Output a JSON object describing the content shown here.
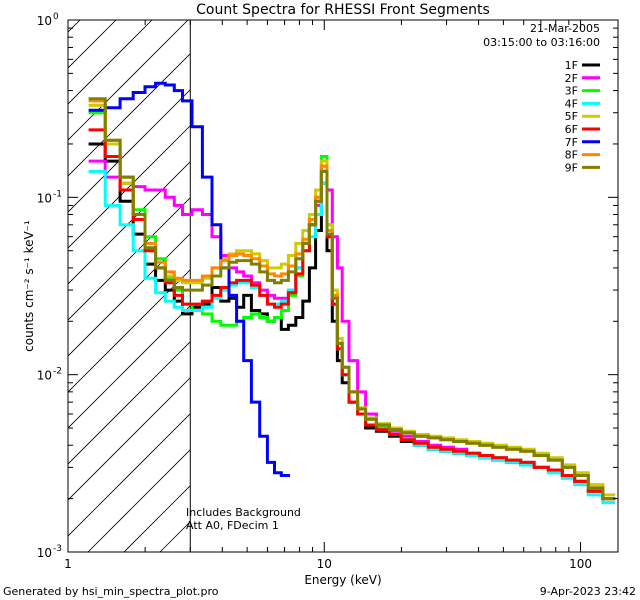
{
  "chart_data": {
    "type": "line",
    "title": "Count Spectra for RHESSI Front Segments",
    "xlabel": "Energy (keV)",
    "ylabel": "counts cm⁻² s⁻¹ keV⁻¹",
    "xscale": "log",
    "yscale": "log",
    "xlim": [
      1,
      140
    ],
    "ylim": [
      0.001,
      1
    ],
    "x_ticks": [
      1,
      10,
      100
    ],
    "x_tick_labels": [
      "1",
      "10",
      "100"
    ],
    "y_ticks": [
      0.001,
      0.01,
      0.1,
      1
    ],
    "y_tick_labels": [
      {
        "base": "10",
        "exp": "-3"
      },
      {
        "base": "10",
        "exp": "-2"
      },
      {
        "base": "10",
        "exp": "-1"
      },
      {
        "base": "10",
        "exp": "0"
      }
    ],
    "date": "21-Mar-2005",
    "time_range": "03:15:00 to 03:16:00",
    "shaded_region_keV": [
      1,
      3
    ],
    "legend_position": "top-right",
    "annotations": [
      "Includes Background",
      "Att A0, FDecim 1"
    ],
    "series": [
      {
        "name": "1F",
        "color": "#000000",
        "x": [
          1.3,
          1.5,
          1.7,
          1.9,
          2.1,
          2.3,
          2.5,
          2.7,
          2.9,
          3.2,
          3.5,
          3.8,
          4.1,
          4.4,
          4.7,
          5.0,
          5.4,
          5.8,
          6.2,
          6.6,
          7.0,
          7.5,
          8.0,
          8.5,
          9.0,
          9.5,
          10.0,
          10.5,
          11.0,
          11.5,
          12.0,
          13,
          14,
          15,
          17,
          19,
          21,
          24,
          27,
          30,
          34,
          38,
          43,
          48,
          55,
          62,
          70,
          80,
          90,
          100,
          115,
          130
        ],
        "y": [
          0.2,
          0.16,
          0.095,
          0.062,
          0.042,
          0.034,
          0.03,
          0.026,
          0.022,
          0.024,
          0.025,
          0.031,
          0.026,
          0.027,
          0.024,
          0.028,
          0.023,
          0.022,
          0.02,
          0.021,
          0.018,
          0.019,
          0.021,
          0.026,
          0.04,
          0.065,
          0.12,
          0.05,
          0.02,
          0.012,
          0.009,
          0.007,
          0.006,
          0.005,
          0.0048,
          0.0045,
          0.0042,
          0.004,
          0.0038,
          0.0037,
          0.0036,
          0.0035,
          0.0034,
          0.0033,
          0.0032,
          0.0031,
          0.003,
          0.0029,
          0.0027,
          0.0025,
          0.0022,
          0.002
        ]
      },
      {
        "name": "2F",
        "color": "#ff00ff",
        "x": [
          1.3,
          1.5,
          1.7,
          1.9,
          2.1,
          2.3,
          2.5,
          2.7,
          2.9,
          3.2,
          3.5,
          3.8,
          4.1,
          4.4,
          4.7,
          5.0,
          5.4,
          5.8,
          6.2,
          6.6,
          7.0,
          7.5,
          8.0,
          8.5,
          9.0,
          9.5,
          10.0,
          10.5,
          11.0,
          11.5,
          12.0,
          13,
          14,
          15,
          17,
          19,
          21,
          24,
          27,
          30,
          34,
          38,
          43,
          48,
          55,
          62,
          70,
          80,
          90,
          100,
          115,
          130
        ],
        "y": [
          0.16,
          0.13,
          0.12,
          0.115,
          0.11,
          0.11,
          0.1,
          0.09,
          0.08,
          0.085,
          0.08,
          0.06,
          0.047,
          0.04,
          0.038,
          0.036,
          0.033,
          0.03,
          0.028,
          0.027,
          0.027,
          0.03,
          0.04,
          0.055,
          0.07,
          0.09,
          0.15,
          0.11,
          0.06,
          0.04,
          0.02,
          0.012,
          0.008,
          0.006,
          0.0052,
          0.0048,
          0.0045,
          0.0042,
          0.004,
          0.0039,
          0.0038,
          0.0036,
          0.0035,
          0.0034,
          0.0033,
          0.0032,
          0.003,
          0.0029,
          0.0027,
          0.0025,
          0.0022,
          0.002
        ]
      },
      {
        "name": "3F",
        "color": "#00ff00",
        "x": [
          1.3,
          1.5,
          1.7,
          1.9,
          2.1,
          2.3,
          2.5,
          2.7,
          2.9,
          3.2,
          3.5,
          3.8,
          4.1,
          4.4,
          4.7,
          5.0,
          5.4,
          5.8,
          6.2,
          6.6,
          7.0,
          7.5,
          8.0,
          8.5,
          9.0,
          9.5,
          10.0,
          10.5,
          11.0,
          11.5,
          12.0,
          13,
          14,
          15,
          17,
          19,
          21,
          24,
          27,
          30,
          34,
          38,
          43,
          48,
          55,
          62,
          70,
          80,
          90,
          100,
          115,
          130
        ],
        "y": [
          0.3,
          0.2,
          0.13,
          0.085,
          0.06,
          0.045,
          0.035,
          0.03,
          0.025,
          0.023,
          0.022,
          0.02,
          0.019,
          0.019,
          0.02,
          0.021,
          0.022,
          0.021,
          0.02,
          0.021,
          0.023,
          0.028,
          0.036,
          0.05,
          0.07,
          0.1,
          0.17,
          0.07,
          0.025,
          0.014,
          0.01,
          0.007,
          0.006,
          0.0052,
          0.005,
          0.0046,
          0.0043,
          0.0041,
          0.0039,
          0.0038,
          0.0037,
          0.0036,
          0.0035,
          0.0034,
          0.0033,
          0.0032,
          0.003,
          0.0029,
          0.0027,
          0.0025,
          0.0022,
          0.002
        ]
      },
      {
        "name": "4F",
        "color": "#00ffff",
        "x": [
          1.3,
          1.5,
          1.7,
          1.9,
          2.1,
          2.3,
          2.5,
          2.7,
          2.9,
          3.2,
          3.5,
          3.8,
          4.1,
          4.4,
          4.7,
          5.0,
          5.4,
          5.8,
          6.2,
          6.6,
          7.0,
          7.5,
          8.0,
          8.5,
          9.0,
          9.5,
          10.0,
          10.5,
          11.0,
          11.5,
          12.0,
          13,
          14,
          15,
          17,
          19,
          21,
          24,
          27,
          30,
          34,
          38,
          43,
          48,
          55,
          62,
          70,
          80,
          90,
          100,
          115,
          130
        ],
        "y": [
          0.14,
          0.09,
          0.07,
          0.05,
          0.035,
          0.029,
          0.026,
          0.024,
          0.023,
          0.023,
          0.024,
          0.027,
          0.03,
          0.032,
          0.033,
          0.033,
          0.031,
          0.028,
          0.025,
          0.025,
          0.026,
          0.03,
          0.04,
          0.05,
          0.06,
          0.08,
          0.12,
          0.06,
          0.025,
          0.014,
          0.01,
          0.007,
          0.006,
          0.0052,
          0.0049,
          0.0046,
          0.0043,
          0.004,
          0.0038,
          0.0037,
          0.0036,
          0.0035,
          0.0034,
          0.0033,
          0.0032,
          0.0031,
          0.003,
          0.0028,
          0.0026,
          0.0024,
          0.0021,
          0.0019
        ]
      },
      {
        "name": "5F",
        "color": "#cccc00",
        "x": [
          1.3,
          1.5,
          1.7,
          1.9,
          2.1,
          2.3,
          2.5,
          2.7,
          2.9,
          3.2,
          3.5,
          3.8,
          4.1,
          4.4,
          4.7,
          5.0,
          5.4,
          5.8,
          6.2,
          6.6,
          7.0,
          7.5,
          8.0,
          8.5,
          9.0,
          9.5,
          10.0,
          10.5,
          11.0,
          11.5,
          12.0,
          13,
          14,
          15,
          17,
          19,
          21,
          24,
          27,
          30,
          34,
          38,
          43,
          48,
          55,
          62,
          70,
          80,
          90,
          100,
          115,
          130
        ],
        "y": [
          0.33,
          0.2,
          0.12,
          0.075,
          0.05,
          0.04,
          0.036,
          0.034,
          0.033,
          0.033,
          0.035,
          0.04,
          0.045,
          0.048,
          0.05,
          0.05,
          0.048,
          0.044,
          0.04,
          0.04,
          0.042,
          0.047,
          0.055,
          0.065,
          0.08,
          0.11,
          0.16,
          0.07,
          0.03,
          0.016,
          0.011,
          0.008,
          0.0065,
          0.0057,
          0.0053,
          0.005,
          0.0048,
          0.0046,
          0.0045,
          0.0044,
          0.0043,
          0.0042,
          0.0041,
          0.004,
          0.0039,
          0.0038,
          0.0036,
          0.0034,
          0.0031,
          0.0028,
          0.0024,
          0.0021
        ]
      },
      {
        "name": "6F",
        "color": "#ff0000",
        "x": [
          1.3,
          1.5,
          1.7,
          1.9,
          2.1,
          2.3,
          2.5,
          2.7,
          2.9,
          3.2,
          3.5,
          3.8,
          4.1,
          4.4,
          4.7,
          5.0,
          5.4,
          5.8,
          6.2,
          6.6,
          7.0,
          7.5,
          8.0,
          8.5,
          9.0,
          9.5,
          10.0,
          10.5,
          11.0,
          11.5,
          12.0,
          13,
          14,
          15,
          17,
          19,
          21,
          24,
          27,
          30,
          34,
          38,
          43,
          48,
          55,
          62,
          70,
          80,
          90,
          100,
          115,
          130
        ],
        "y": [
          0.24,
          0.17,
          0.11,
          0.075,
          0.05,
          0.04,
          0.033,
          0.028,
          0.025,
          0.025,
          0.026,
          0.028,
          0.031,
          0.033,
          0.034,
          0.034,
          0.032,
          0.028,
          0.025,
          0.024,
          0.025,
          0.029,
          0.037,
          0.05,
          0.07,
          0.095,
          0.14,
          0.06,
          0.025,
          0.014,
          0.01,
          0.007,
          0.006,
          0.0052,
          0.0049,
          0.0046,
          0.0043,
          0.0041,
          0.0039,
          0.0038,
          0.0037,
          0.0036,
          0.0035,
          0.0034,
          0.0033,
          0.0032,
          0.003,
          0.0029,
          0.0027,
          0.0025,
          0.0022,
          0.002
        ]
      },
      {
        "name": "7F",
        "color": "#0000ff",
        "x": [
          1.3,
          1.5,
          1.7,
          1.9,
          2.1,
          2.3,
          2.5,
          2.7,
          2.9,
          3.2,
          3.5,
          3.8,
          4.1,
          4.4,
          4.7,
          5.0,
          5.4,
          5.8,
          6.2,
          6.6,
          7.0
        ],
        "y": [
          0.31,
          0.32,
          0.36,
          0.39,
          0.42,
          0.44,
          0.43,
          0.4,
          0.35,
          0.25,
          0.13,
          0.07,
          0.04,
          0.028,
          0.02,
          0.012,
          0.007,
          0.0045,
          0.0032,
          0.0028,
          0.0027
        ]
      },
      {
        "name": "8F",
        "color": "#ff8800",
        "x": [
          1.3,
          1.5,
          1.7,
          1.9,
          2.1,
          2.3,
          2.5,
          2.7,
          2.9,
          3.2,
          3.5,
          3.8,
          4.1,
          4.4,
          4.7,
          5.0,
          5.4,
          5.8,
          6.2,
          6.6,
          7.0,
          7.5,
          8.0,
          8.5,
          9.0,
          9.5,
          10.0,
          10.5,
          11.0,
          11.5,
          12.0,
          13,
          14,
          15,
          17,
          19,
          21,
          24,
          27,
          30,
          34,
          38,
          43,
          48,
          55,
          62,
          70,
          80,
          90,
          100,
          115,
          130
        ],
        "y": [
          0.35,
          0.21,
          0.13,
          0.08,
          0.055,
          0.043,
          0.038,
          0.035,
          0.034,
          0.034,
          0.036,
          0.04,
          0.044,
          0.047,
          0.048,
          0.047,
          0.045,
          0.041,
          0.037,
          0.036,
          0.037,
          0.041,
          0.048,
          0.058,
          0.075,
          0.1,
          0.15,
          0.065,
          0.028,
          0.015,
          0.011,
          0.008,
          0.0064,
          0.0056,
          0.0052,
          0.0049,
          0.0047,
          0.0045,
          0.0044,
          0.0043,
          0.0042,
          0.0041,
          0.004,
          0.0039,
          0.0038,
          0.0037,
          0.0035,
          0.0033,
          0.003,
          0.0027,
          0.0023,
          0.002
        ]
      },
      {
        "name": "9F",
        "color": "#808000",
        "x": [
          1.3,
          1.5,
          1.7,
          1.9,
          2.1,
          2.3,
          2.5,
          2.7,
          2.9,
          3.2,
          3.5,
          3.8,
          4.1,
          4.4,
          4.7,
          5.0,
          5.4,
          5.8,
          6.2,
          6.6,
          7.0,
          7.5,
          8.0,
          8.5,
          9.0,
          9.5,
          10.0,
          10.5,
          11.0,
          11.5,
          12.0,
          13,
          14,
          15,
          17,
          19,
          21,
          24,
          27,
          30,
          34,
          38,
          43,
          48,
          55,
          62,
          70,
          80,
          90,
          100,
          115,
          130
        ],
        "y": [
          0.36,
          0.21,
          0.13,
          0.08,
          0.052,
          0.04,
          0.034,
          0.031,
          0.03,
          0.03,
          0.032,
          0.036,
          0.04,
          0.043,
          0.044,
          0.044,
          0.042,
          0.038,
          0.034,
          0.033,
          0.034,
          0.038,
          0.045,
          0.055,
          0.07,
          0.095,
          0.14,
          0.062,
          0.027,
          0.015,
          0.011,
          0.008,
          0.0064,
          0.0056,
          0.0052,
          0.0049,
          0.0047,
          0.0045,
          0.0044,
          0.0043,
          0.0042,
          0.0041,
          0.004,
          0.0039,
          0.0038,
          0.0037,
          0.0035,
          0.0033,
          0.003,
          0.0027,
          0.0023,
          0.002
        ]
      }
    ]
  },
  "footer": {
    "left": "Generated by hsi_min_spectra_plot.pro",
    "right": "9-Apr-2023 23:42"
  }
}
